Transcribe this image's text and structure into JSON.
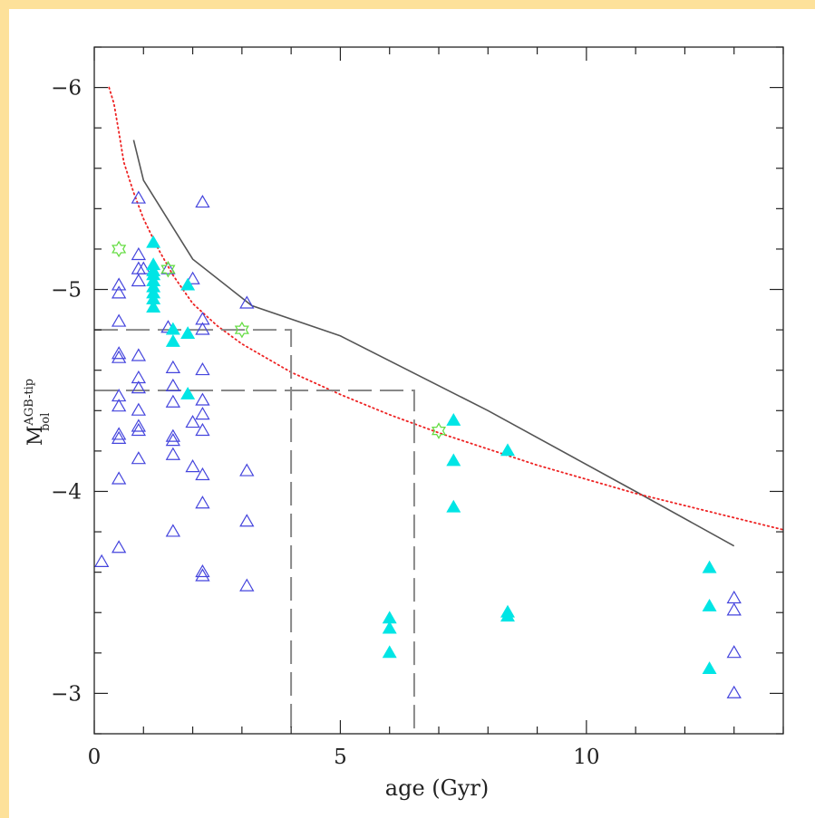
{
  "chart_data": {
    "type": "scatter",
    "xlabel": "age (Gyr)",
    "ylabel": {
      "main": "M",
      "sup": "AGB-tip",
      "sub": "bol"
    },
    "xlim": [
      0,
      14
    ],
    "ylim": [
      -2.8,
      -6.2
    ],
    "x_ticks": [
      0,
      5,
      10
    ],
    "x_tick_labels": [
      "0",
      "5",
      "10"
    ],
    "y_ticks": [
      -6,
      -5,
      -4,
      -3
    ],
    "y_tick_labels": [
      "−6",
      "−5",
      "−4",
      "−3"
    ],
    "grid": false,
    "colors": {
      "open_triangles": "#4444dd",
      "filled_triangles": "#00e5e5",
      "stars": "#66dd44",
      "solid_line": "#555555",
      "dotted_line": "#ee2222",
      "dashed_line": "#888888"
    },
    "series": [
      {
        "marker": "open-triangle",
        "points": [
          [
            0.15,
            -3.65
          ],
          [
            0.5,
            -3.72
          ],
          [
            0.5,
            -4.06
          ],
          [
            0.5,
            -4.26
          ],
          [
            0.5,
            -4.28
          ],
          [
            0.5,
            -4.42
          ],
          [
            0.5,
            -4.47
          ],
          [
            0.5,
            -4.66
          ],
          [
            0.5,
            -4.68
          ],
          [
            0.5,
            -4.84
          ],
          [
            0.5,
            -4.98
          ],
          [
            0.5,
            -5.02
          ],
          [
            0.9,
            -5.45
          ],
          [
            0.9,
            -5.17
          ],
          [
            0.9,
            -5.1
          ],
          [
            0.9,
            -5.04
          ],
          [
            0.9,
            -4.67
          ],
          [
            0.9,
            -4.56
          ],
          [
            0.9,
            -4.51
          ],
          [
            0.9,
            -4.4
          ],
          [
            0.9,
            -4.32
          ],
          [
            0.9,
            -4.3
          ],
          [
            0.9,
            -4.16
          ],
          [
            1.0,
            -5.1
          ],
          [
            1.5,
            -5.1
          ],
          [
            1.5,
            -4.81
          ],
          [
            1.6,
            -4.61
          ],
          [
            1.6,
            -4.52
          ],
          [
            1.6,
            -4.44
          ],
          [
            1.6,
            -4.27
          ],
          [
            1.6,
            -4.25
          ],
          [
            1.6,
            -4.18
          ],
          [
            1.6,
            -3.8
          ],
          [
            2.0,
            -5.05
          ],
          [
            2.0,
            -4.34
          ],
          [
            2.0,
            -4.12
          ],
          [
            2.2,
            -5.43
          ],
          [
            2.2,
            -4.85
          ],
          [
            2.2,
            -4.8
          ],
          [
            2.2,
            -4.6
          ],
          [
            2.2,
            -4.45
          ],
          [
            2.2,
            -4.38
          ],
          [
            2.2,
            -4.3
          ],
          [
            2.2,
            -4.08
          ],
          [
            2.2,
            -3.94
          ],
          [
            2.2,
            -3.6
          ],
          [
            2.2,
            -3.58
          ],
          [
            3.1,
            -4.93
          ],
          [
            3.1,
            -4.1
          ],
          [
            3.1,
            -3.85
          ],
          [
            3.1,
            -3.53
          ],
          [
            13.0,
            -3.47
          ],
          [
            13.0,
            -3.41
          ],
          [
            13.0,
            -3.2
          ],
          [
            13.0,
            -3.0
          ]
        ]
      },
      {
        "marker": "filled-triangle",
        "points": [
          [
            1.2,
            -5.23
          ],
          [
            1.2,
            -5.12
          ],
          [
            1.2,
            -5.09
          ],
          [
            1.2,
            -5.07
          ],
          [
            1.2,
            -5.04
          ],
          [
            1.2,
            -5.01
          ],
          [
            1.2,
            -4.98
          ],
          [
            1.2,
            -4.95
          ],
          [
            1.2,
            -4.91
          ],
          [
            1.6,
            -4.8
          ],
          [
            1.6,
            -4.74
          ],
          [
            1.9,
            -5.02
          ],
          [
            1.9,
            -4.78
          ],
          [
            1.9,
            -4.48
          ],
          [
            6.0,
            -3.37
          ],
          [
            6.0,
            -3.32
          ],
          [
            6.0,
            -3.2
          ],
          [
            7.3,
            -4.35
          ],
          [
            7.3,
            -4.15
          ],
          [
            7.3,
            -3.92
          ],
          [
            8.4,
            -4.2
          ],
          [
            8.4,
            -3.4
          ],
          [
            8.4,
            -3.38
          ],
          [
            12.5,
            -3.62
          ],
          [
            12.5,
            -3.43
          ],
          [
            12.5,
            -3.12
          ]
        ]
      },
      {
        "marker": "open-star",
        "points": [
          [
            0.5,
            -5.2
          ],
          [
            1.5,
            -5.1
          ],
          [
            3.0,
            -4.8
          ],
          [
            7.0,
            -4.3
          ]
        ]
      }
    ],
    "lines": [
      {
        "style": "solid",
        "points": [
          [
            0.8,
            -5.74
          ],
          [
            1.0,
            -5.54
          ],
          [
            2.0,
            -5.15
          ],
          [
            3.2,
            -4.92
          ],
          [
            5.0,
            -4.77
          ],
          [
            8.0,
            -4.4
          ],
          [
            11.0,
            -4.0
          ],
          [
            13.0,
            -3.73
          ]
        ]
      },
      {
        "style": "dotted",
        "points": [
          [
            0.3,
            -6.0
          ],
          [
            0.4,
            -5.92
          ],
          [
            0.5,
            -5.78
          ],
          [
            0.6,
            -5.63
          ],
          [
            0.8,
            -5.48
          ],
          [
            1.0,
            -5.35
          ],
          [
            1.3,
            -5.2
          ],
          [
            1.6,
            -5.07
          ],
          [
            2.0,
            -4.93
          ],
          [
            2.5,
            -4.82
          ],
          [
            3.0,
            -4.73
          ],
          [
            4.0,
            -4.59
          ],
          [
            5.0,
            -4.48
          ],
          [
            6.0,
            -4.38
          ],
          [
            7.0,
            -4.29
          ],
          [
            8.0,
            -4.21
          ],
          [
            9.0,
            -4.13
          ],
          [
            10.0,
            -4.06
          ],
          [
            11.0,
            -3.99
          ],
          [
            12.0,
            -3.93
          ],
          [
            13.0,
            -3.87
          ],
          [
            14.0,
            -3.81
          ]
        ]
      },
      {
        "style": "dashed",
        "points": [
          [
            0,
            -4.8
          ],
          [
            4.0,
            -4.8
          ],
          [
            4.0,
            -2.8
          ]
        ]
      },
      {
        "style": "dashed",
        "points": [
          [
            0,
            -4.5
          ],
          [
            6.5,
            -4.5
          ],
          [
            6.5,
            -2.8
          ]
        ]
      }
    ]
  }
}
